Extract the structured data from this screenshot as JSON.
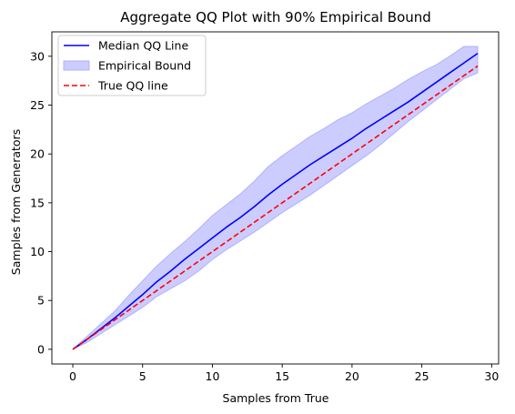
{
  "chart_data": {
    "type": "line",
    "title": "Aggregate QQ Plot with  90% Empirical Bound",
    "xlabel": "Samples from True",
    "ylabel": "Samples from Generators",
    "xlim": [
      -1.5,
      30.5
    ],
    "ylim": [
      -1.5,
      32.5
    ],
    "xticks": [
      0,
      5,
      10,
      15,
      20,
      25,
      30
    ],
    "yticks": [
      0,
      5,
      10,
      15,
      20,
      25,
      30
    ],
    "grid": false,
    "legend_position": "top-left",
    "series": [
      {
        "name": "Median QQ Line",
        "kind": "line",
        "color": "#0000ff",
        "dash": "solid",
        "x": [
          0,
          1,
          2,
          3,
          4,
          5,
          6,
          7,
          8,
          9,
          10,
          11,
          12,
          13,
          14,
          15,
          16,
          17,
          18,
          19,
          20,
          21,
          22,
          23,
          24,
          25,
          26,
          27,
          28,
          29
        ],
        "y": [
          0,
          1.0,
          2.1,
          3.2,
          4.4,
          5.6,
          6.9,
          8.0,
          9.2,
          10.3,
          11.4,
          12.5,
          13.5,
          14.6,
          15.8,
          16.9,
          17.9,
          18.9,
          19.8,
          20.7,
          21.6,
          22.6,
          23.5,
          24.4,
          25.3,
          26.3,
          27.3,
          28.3,
          29.3,
          30.3
        ]
      },
      {
        "name": "Empirical Bound",
        "kind": "band",
        "color": "#ccccff",
        "edge_color": "#b0b0ff",
        "x": [
          0,
          1,
          2,
          3,
          4,
          5,
          6,
          7,
          8,
          9,
          10,
          11,
          12,
          13,
          14,
          15,
          16,
          17,
          18,
          19,
          20,
          21,
          22,
          23,
          24,
          25,
          26,
          27,
          28,
          29
        ],
        "lower": [
          0,
          0.7,
          1.6,
          2.5,
          3.4,
          4.3,
          5.4,
          6.2,
          7.0,
          8.0,
          9.2,
          10.2,
          11.1,
          12.0,
          13.0,
          14.0,
          14.9,
          15.8,
          16.8,
          17.8,
          18.8,
          19.8,
          20.9,
          22.1,
          23.3,
          24.4,
          25.5,
          26.6,
          27.7,
          28.3
        ],
        "upper": [
          0,
          1.3,
          2.6,
          3.9,
          5.5,
          7.0,
          8.5,
          9.8,
          11.0,
          12.3,
          13.7,
          14.8,
          15.9,
          17.2,
          18.7,
          19.8,
          20.8,
          21.8,
          22.6,
          23.5,
          24.2,
          25.1,
          25.9,
          26.7,
          27.6,
          28.4,
          29.1,
          30.0,
          31.0,
          31.0
        ]
      },
      {
        "name": "True QQ line",
        "kind": "line",
        "color": "#ff0000",
        "dash": "dashed",
        "x": [
          0,
          29
        ],
        "y": [
          0,
          29
        ]
      }
    ]
  }
}
